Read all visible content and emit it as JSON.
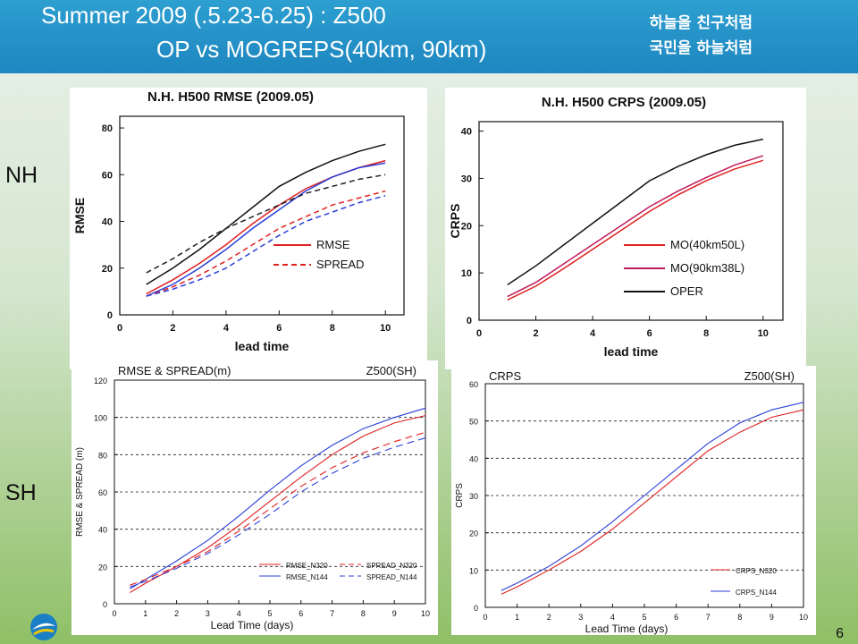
{
  "header": {
    "title_line1": "Summer 2009 (.5.23-6.25) : Z500",
    "title_line2": "OP vs MOGREPS(40km, 90km)",
    "slogan_line1": "하늘을 친구처럼",
    "slogan_line2": "국민을 하늘처럼"
  },
  "labels": {
    "nh": "NH",
    "sh": "SH"
  },
  "page_number": "6",
  "chart_data": [
    {
      "id": "nh_rmse",
      "type": "line",
      "title": "N.H. H500 RMSE (2009.05)",
      "xlabel": "lead time",
      "ylabel": "RMSE",
      "xlim": [
        0,
        10.7
      ],
      "ylim": [
        0,
        85
      ],
      "xticks": [
        0,
        2,
        4,
        6,
        8,
        10
      ],
      "yticks": [
        0,
        20,
        40,
        60,
        80
      ],
      "legend": [
        {
          "label": "RMSE",
          "color": "#e02020",
          "dash": false
        },
        {
          "label": "SPREAD",
          "color": "#e02020",
          "dash": true
        }
      ],
      "series": [
        {
          "color": "#111111",
          "dash": false,
          "x": [
            1,
            2,
            3,
            4,
            5,
            6,
            7,
            8,
            9,
            10
          ],
          "y": [
            13,
            20,
            28,
            37,
            46,
            55,
            61,
            66,
            70,
            73
          ]
        },
        {
          "color": "#e02020",
          "dash": false,
          "x": [
            1,
            2,
            3,
            4,
            5,
            6,
            7,
            8,
            9,
            10
          ],
          "y": [
            9,
            15,
            22,
            30,
            39,
            47,
            54,
            59,
            63,
            66
          ]
        },
        {
          "color": "#2a3fd8",
          "dash": false,
          "x": [
            1,
            2,
            3,
            4,
            5,
            6,
            7,
            8,
            9,
            10
          ],
          "y": [
            8,
            13,
            20,
            28,
            37,
            45,
            53,
            59,
            63,
            65
          ]
        },
        {
          "color": "#222222",
          "dash": true,
          "x": [
            1,
            2,
            3,
            4,
            5,
            6,
            7,
            8,
            9,
            10
          ],
          "y": [
            18,
            24,
            31,
            37,
            42,
            47,
            52,
            55,
            58,
            60
          ]
        },
        {
          "color": "#e02020",
          "dash": true,
          "x": [
            1,
            2,
            3,
            4,
            5,
            6,
            7,
            8,
            9,
            10
          ],
          "y": [
            8,
            12,
            17,
            23,
            30,
            37,
            42,
            47,
            50,
            53
          ]
        },
        {
          "color": "#2a3fd8",
          "dash": true,
          "x": [
            1,
            2,
            3,
            4,
            5,
            6,
            7,
            8,
            9,
            10
          ],
          "y": [
            8,
            11,
            15,
            20,
            27,
            34,
            40,
            44,
            48,
            51
          ]
        }
      ]
    },
    {
      "id": "nh_crps",
      "type": "line",
      "title": "N.H. H500 CRPS (2009.05)",
      "xlabel": "lead time",
      "ylabel": "CRPS",
      "xlim": [
        0,
        10.7
      ],
      "ylim": [
        0,
        42
      ],
      "xticks": [
        0,
        2,
        4,
        6,
        8,
        10
      ],
      "yticks": [
        0,
        10,
        20,
        30,
        40
      ],
      "legend": [
        {
          "label": "MO(40km50L)",
          "color": "#e02020",
          "dash": false
        },
        {
          "label": "MO(90km38L)",
          "color": "#c0185a",
          "dash": false
        },
        {
          "label": "OPER",
          "color": "#111111",
          "dash": false
        }
      ],
      "series": [
        {
          "color": "#111111",
          "dash": false,
          "x": [
            1,
            2,
            3,
            4,
            5,
            6,
            7,
            8,
            9,
            10
          ],
          "y": [
            7.5,
            11.5,
            16,
            20.5,
            25,
            29.5,
            32.5,
            35,
            37,
            38.3
          ]
        },
        {
          "color": "#c0185a",
          "dash": false,
          "x": [
            1,
            2,
            3,
            4,
            5,
            6,
            7,
            8,
            9,
            10
          ],
          "y": [
            5,
            8,
            12,
            16,
            20,
            24,
            27.3,
            30.2,
            32.8,
            34.8
          ]
        },
        {
          "color": "#e02020",
          "dash": false,
          "x": [
            1,
            2,
            3,
            4,
            5,
            6,
            7,
            8,
            9,
            10
          ],
          "y": [
            4.3,
            7.2,
            11,
            15,
            19,
            23,
            26.5,
            29.5,
            32,
            33.8
          ]
        }
      ]
    },
    {
      "id": "sh_rmse",
      "type": "line",
      "title": "RMSE & SPREAD(m)",
      "title_right": "Z500(SH)",
      "xlabel": "Lead Time (days)",
      "ylabel": "RMSE & SPREAD (m)",
      "xlim": [
        0,
        10
      ],
      "ylim": [
        0,
        120
      ],
      "xticks": [
        0,
        1,
        2,
        3,
        4,
        5,
        6,
        7,
        8,
        9,
        10
      ],
      "yticks": [
        0,
        20,
        40,
        60,
        80,
        100,
        120
      ],
      "grid": "dashed-horizontal",
      "legend": [
        {
          "label": "RMSE_N320",
          "color": "#e02020",
          "dash": false
        },
        {
          "label": "SPREAD_N320",
          "color": "#e02020",
          "dash": true
        },
        {
          "label": "RMSE_N144",
          "color": "#2a3fd8",
          "dash": false
        },
        {
          "label": "SPREAD_N144",
          "color": "#2a3fd8",
          "dash": true
        }
      ],
      "series": [
        {
          "color": "#e02020",
          "dash": false,
          "x": [
            0.5,
            1,
            2,
            3,
            4,
            5,
            6,
            7,
            8,
            9,
            10
          ],
          "y": [
            6,
            11,
            20,
            30,
            42,
            55,
            68,
            80,
            90,
            97,
            101
          ]
        },
        {
          "color": "#2a3fd8",
          "dash": false,
          "x": [
            0.5,
            1,
            2,
            3,
            4,
            5,
            6,
            7,
            8,
            9,
            10
          ],
          "y": [
            8,
            13,
            23,
            34,
            47,
            61,
            74,
            85,
            94,
            100,
            105
          ]
        },
        {
          "color": "#e02020",
          "dash": true,
          "x": [
            0.5,
            1,
            2,
            3,
            4,
            5,
            6,
            7,
            8,
            9,
            10
          ],
          "y": [
            10,
            13,
            20,
            28,
            39,
            51,
            63,
            73,
            81,
            87,
            92
          ]
        },
        {
          "color": "#2a3fd8",
          "dash": true,
          "x": [
            0.5,
            1,
            2,
            3,
            4,
            5,
            6,
            7,
            8,
            9,
            10
          ],
          "y": [
            9,
            12,
            19,
            27,
            37,
            48,
            60,
            70,
            78,
            84,
            89
          ]
        }
      ]
    },
    {
      "id": "sh_crps",
      "type": "line",
      "title": "CRPS",
      "title_right": "Z500(SH)",
      "xlabel": "Lead Time (days)",
      "ylabel": "CRPS",
      "xlim": [
        0,
        10
      ],
      "ylim": [
        0,
        60
      ],
      "xticks": [
        0,
        1,
        2,
        3,
        4,
        5,
        6,
        7,
        8,
        9,
        10
      ],
      "yticks": [
        0,
        10,
        20,
        30,
        40,
        50,
        60
      ],
      "grid": "dashed-horizontal",
      "legend": [
        {
          "label": "CRPS_N320",
          "color": "#e02020",
          "dash": false
        },
        {
          "label": "CRPS_N144",
          "color": "#2a3fd8",
          "dash": false
        }
      ],
      "series": [
        {
          "color": "#e02020",
          "dash": false,
          "x": [
            0.5,
            1,
            2,
            3,
            4,
            5,
            6,
            7,
            8,
            9,
            10
          ],
          "y": [
            3.5,
            5.5,
            10,
            15,
            21,
            28,
            35,
            42,
            47,
            51,
            53
          ]
        },
        {
          "color": "#2a3fd8",
          "dash": false,
          "x": [
            0.5,
            1,
            2,
            3,
            4,
            5,
            6,
            7,
            8,
            9,
            10
          ],
          "y": [
            4.5,
            6.5,
            11,
            16.5,
            23,
            30,
            37,
            44,
            49.5,
            53,
            55
          ]
        }
      ]
    }
  ]
}
